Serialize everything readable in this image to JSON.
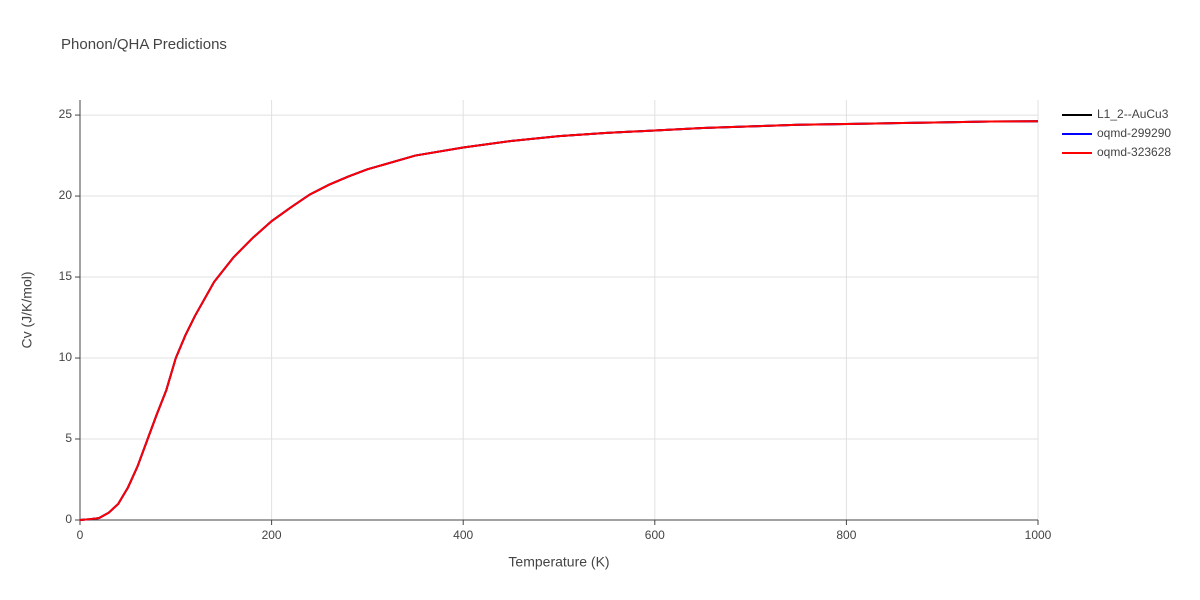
{
  "chart_data": {
    "type": "line",
    "title": "Phonon/QHA Predictions",
    "x_label": "Temperature (K)",
    "y_label": "Cv (J/K/mol)",
    "x": [
      0,
      10,
      20,
      30,
      40,
      50,
      60,
      70,
      80,
      90,
      100,
      110,
      120,
      140,
      160,
      180,
      200,
      220,
      240,
      260,
      280,
      300,
      350,
      400,
      450,
      500,
      550,
      600,
      650,
      700,
      750,
      800,
      850,
      900,
      950,
      1000
    ],
    "series": [
      {
        "name": "L1_2--AuCu3",
        "color": "#000000",
        "values": [
          0,
          0.05,
          0.12,
          0.45,
          1.0,
          2.0,
          3.3,
          4.9,
          6.5,
          8.0,
          10.0,
          11.4,
          12.6,
          14.7,
          16.2,
          17.4,
          18.45,
          19.3,
          20.1,
          20.7,
          21.2,
          21.65,
          22.5,
          23.0,
          23.4,
          23.7,
          23.9,
          24.05,
          24.2,
          24.3,
          24.4,
          24.45,
          24.5,
          24.55,
          24.6,
          24.62
        ]
      },
      {
        "name": "oqmd-299290",
        "color": "#0000ff",
        "values": [
          0,
          0.05,
          0.12,
          0.45,
          1.0,
          2.0,
          3.3,
          4.9,
          6.5,
          8.0,
          10.0,
          11.4,
          12.6,
          14.7,
          16.2,
          17.4,
          18.45,
          19.3,
          20.1,
          20.7,
          21.2,
          21.65,
          22.5,
          23.0,
          23.4,
          23.7,
          23.9,
          24.05,
          24.2,
          24.3,
          24.4,
          24.45,
          24.5,
          24.55,
          24.6,
          24.62
        ]
      },
      {
        "name": "oqmd-323628",
        "color": "#ff0000",
        "values": [
          0,
          0.05,
          0.12,
          0.45,
          1.0,
          2.0,
          3.3,
          4.9,
          6.5,
          8.0,
          10.0,
          11.4,
          12.6,
          14.7,
          16.2,
          17.4,
          18.45,
          19.3,
          20.1,
          20.7,
          21.2,
          21.65,
          22.5,
          23.0,
          23.4,
          23.7,
          23.9,
          24.05,
          24.2,
          24.3,
          24.4,
          24.45,
          24.5,
          24.55,
          24.6,
          24.62
        ]
      }
    ],
    "xlim": [
      0,
      1000
    ],
    "xticks": [
      0,
      200,
      400,
      600,
      800,
      1000
    ],
    "ylim": [
      0,
      25.93
    ],
    "yticks": [
      0,
      5,
      10,
      15,
      20,
      25
    ],
    "grid": true,
    "legend": "right"
  }
}
